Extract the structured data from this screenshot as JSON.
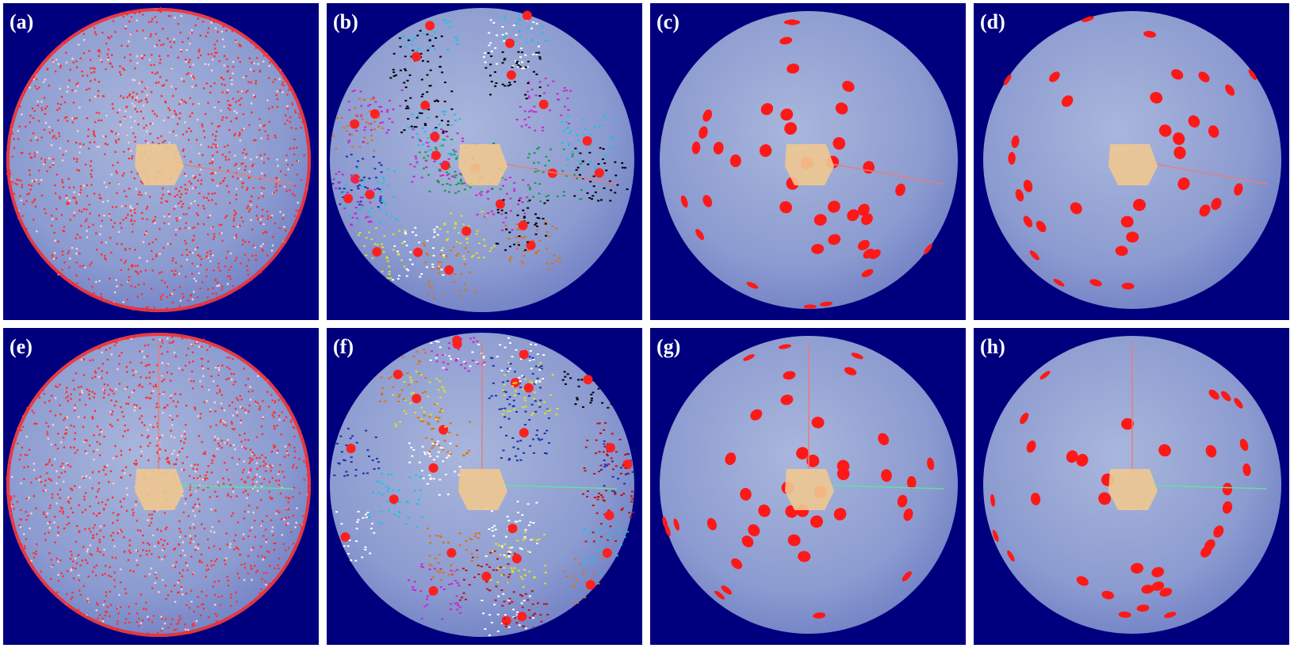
{
  "panels": [
    {
      "label": "(a)"
    },
    {
      "label": "(b)"
    },
    {
      "label": "(c)"
    },
    {
      "label": "(d)"
    },
    {
      "label": "(e)"
    },
    {
      "label": "(f)"
    },
    {
      "label": "(g)"
    },
    {
      "label": "(h)"
    }
  ]
}
